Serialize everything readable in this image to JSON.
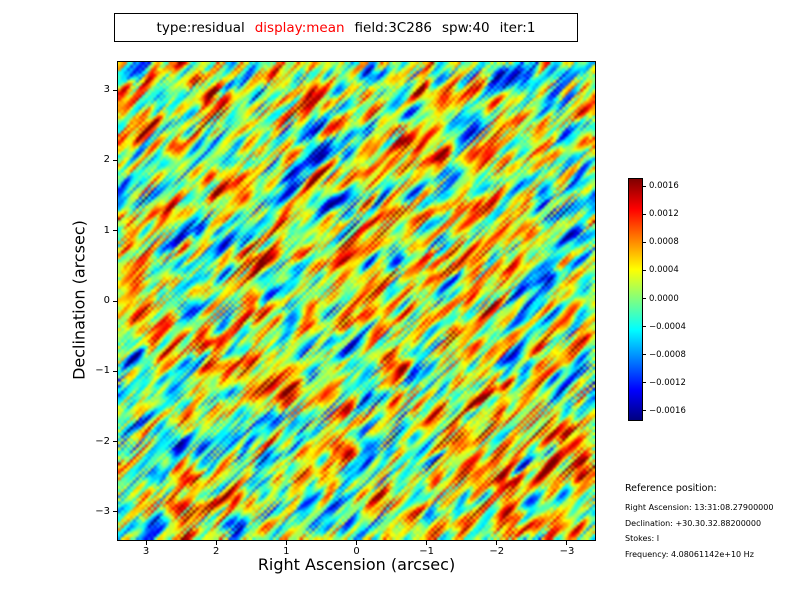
{
  "colors": {
    "black": "#000000",
    "title_red": "#ff0000",
    "background": "#ffffff"
  },
  "title_box": {
    "tokens": [
      {
        "text": "type:residual",
        "color": "#000000"
      },
      {
        "text": "display:mean",
        "color": "#ff0000"
      },
      {
        "text": "field:3C286",
        "color": "#000000"
      },
      {
        "text": "spw:40",
        "color": "#000000"
      },
      {
        "text": "iter:1",
        "color": "#000000"
      }
    ]
  },
  "chart_data": {
    "type": "heatmap",
    "title": "type:residual display:mean field:3C286 spw:40 iter:1",
    "xlabel": "Right Ascension (arcsec)",
    "ylabel": "Declination (arcsec)",
    "x_axis": {
      "max": 3.4,
      "min": -3.4,
      "reversed": true,
      "ticks": [
        {
          "value": 3,
          "label": "3"
        },
        {
          "value": 2,
          "label": "2"
        },
        {
          "value": 1,
          "label": "1"
        },
        {
          "value": 0,
          "label": "0"
        },
        {
          "value": -1,
          "label": "−1"
        },
        {
          "value": -2,
          "label": "−2"
        },
        {
          "value": -3,
          "label": "−3"
        }
      ]
    },
    "y_axis": {
      "max": 3.4,
      "min": -3.4,
      "ticks": [
        {
          "value": 3,
          "label": "3"
        },
        {
          "value": 2,
          "label": "2"
        },
        {
          "value": 1,
          "label": "1"
        },
        {
          "value": 0,
          "label": "0"
        },
        {
          "value": -1,
          "label": "−1"
        },
        {
          "value": -2,
          "label": "−2"
        },
        {
          "value": -3,
          "label": "−3"
        }
      ]
    },
    "colorbar": {
      "colormap": "jet",
      "max": 0.00172,
      "min": -0.00172,
      "ticks": [
        {
          "value": 0.0016,
          "label": "0.0016"
        },
        {
          "value": 0.0012,
          "label": "0.0012"
        },
        {
          "value": 0.0008,
          "label": "0.0008"
        },
        {
          "value": 0.0004,
          "label": "0.0004"
        },
        {
          "value": 0.0,
          "label": "0.0000"
        },
        {
          "value": -0.0004,
          "label": "−0.0004"
        },
        {
          "value": -0.0008,
          "label": "−0.0008"
        },
        {
          "value": -0.0012,
          "label": "−0.0012"
        },
        {
          "value": -0.0016,
          "label": "−0.0016"
        }
      ]
    },
    "image": {
      "kind": "procedural-residual-noise",
      "description": "interferometric residual noise map, fine diagonal streaks running lower-left to upper-right, mostly green/yellow with cyan patches and sparse saturated red/blue specks",
      "seed": 1234,
      "grid": 160,
      "coarse_grid": 18,
      "blur_passes": 1,
      "diagonal_passes": 6,
      "coarse_weight": 0.5,
      "fine_weight": 0.8,
      "scale": 0.2,
      "bias": 0.05
    }
  },
  "reference": {
    "heading": "Reference position:",
    "lines": [
      "Right Ascension: 13:31:08.27900000",
      "Declination: +30.30.32.88200000",
      "Stokes: I",
      "Frequency: 4.08061142e+10 Hz"
    ]
  }
}
